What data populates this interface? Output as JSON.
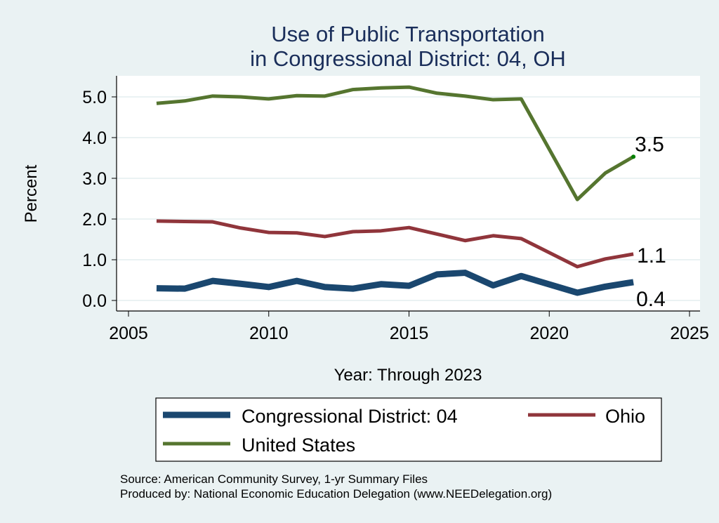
{
  "chart_data": {
    "type": "line",
    "title": [
      "Use of Public Transportation",
      "in Congressional District: 04, OH"
    ],
    "xlabel": "Year: Through 2023",
    "ylabel": "Percent",
    "xlim": [
      2005,
      2025
    ],
    "ylim": [
      0,
      5.5
    ],
    "xticks": [
      2005,
      2010,
      2015,
      2020,
      2025
    ],
    "yticks": [
      0,
      1,
      2,
      3,
      4,
      5
    ],
    "ytick_labels": [
      "0.0",
      "1.0",
      "2.0",
      "3.0",
      "4.0",
      "5.0"
    ],
    "grid": true,
    "legend_position": "bottom",
    "x": [
      2006,
      2007,
      2008,
      2009,
      2010,
      2011,
      2012,
      2013,
      2014,
      2015,
      2016,
      2017,
      2018,
      2019,
      2021,
      2022,
      2023
    ],
    "series": [
      {
        "name": "Congressional District: 04",
        "color": "#1a476f",
        "values": [
          0.3,
          0.29,
          0.48,
          0.41,
          0.33,
          0.48,
          0.33,
          0.29,
          0.4,
          0.36,
          0.64,
          0.68,
          0.37,
          0.6,
          0.19,
          0.34,
          0.45
        ],
        "end_label": "0.4"
      },
      {
        "name": "Ohio",
        "color": "#90353b",
        "values": [
          1.95,
          1.94,
          1.93,
          1.78,
          1.67,
          1.66,
          1.57,
          1.69,
          1.71,
          1.79,
          1.63,
          1.47,
          1.59,
          1.52,
          0.83,
          1.02,
          1.14
        ],
        "end_label": "1.1"
      },
      {
        "name": "United States",
        "color": "#55752f",
        "values": [
          4.84,
          4.9,
          5.02,
          5.0,
          4.95,
          5.03,
          5.02,
          5.18,
          5.22,
          5.24,
          5.09,
          5.02,
          4.93,
          4.95,
          2.48,
          3.13,
          3.53
        ],
        "end_label": "3.5"
      }
    ],
    "notes": [
      "Source: American Community Survey, 1-yr Summary Files",
      "Produced by: National Economic Education Delegation (www.NEEDelegation.org)"
    ]
  }
}
